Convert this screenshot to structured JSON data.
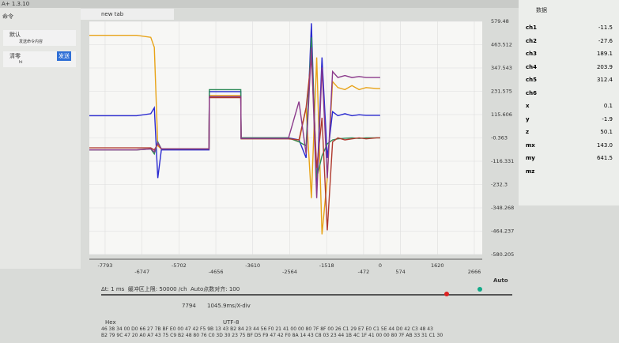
{
  "app": {
    "version": "A+ 1.3.10",
    "tab": "new tab"
  },
  "commands": {
    "title": "命令",
    "items": [
      {
        "name": "默认",
        "text": "发送命令内容"
      },
      {
        "name": "清零",
        "text": "hi"
      }
    ],
    "send": "发送"
  },
  "chart_data": {
    "type": "line",
    "x": [
      -8240,
      -6900,
      -6500,
      -6400,
      -6300,
      -6200,
      -4850,
      -4840,
      -3950,
      -3940,
      -2600,
      -2300,
      -2100,
      -1950,
      -1800,
      -1650,
      -1500,
      -1350,
      -1200,
      -1000,
      -800,
      -600,
      -400,
      -100,
      0
    ],
    "series": [
      {
        "color": "#e8a317",
        "values": [
          510,
          510,
          500,
          450,
          -40,
          -55,
          -55,
          210,
          210,
          0,
          0,
          -20,
          150,
          -300,
          400,
          -480,
          -200,
          280,
          250,
          240,
          260,
          240,
          250,
          245,
          245
        ]
      },
      {
        "color": "#2a2ad0",
        "values": [
          110,
          110,
          120,
          150,
          -200,
          -60,
          -60,
          230,
          230,
          0,
          0,
          -10,
          -100,
          570,
          -260,
          400,
          -100,
          130,
          110,
          120,
          110,
          115,
          112,
          112,
          112
        ]
      },
      {
        "color": "#2e8b57",
        "values": [
          -60,
          -60,
          -55,
          -80,
          -20,
          -55,
          -55,
          240,
          240,
          0,
          0,
          -20,
          -40,
          500,
          -200,
          -90,
          -30,
          -10,
          -5,
          -2,
          0,
          -3,
          0,
          0,
          0
        ]
      },
      {
        "color": "#b03a2e",
        "values": [
          -50,
          -50,
          -50,
          -60,
          -30,
          -55,
          -55,
          200,
          200,
          -5,
          -5,
          -10,
          150,
          400,
          -150,
          100,
          -460,
          -20,
          0,
          -10,
          -5,
          0,
          -5,
          0,
          0
        ]
      },
      {
        "color": "#8b3a8b",
        "values": [
          -60,
          -60,
          -55,
          -70,
          -25,
          -55,
          -55,
          205,
          205,
          -3,
          -3,
          180,
          -80,
          450,
          -300,
          350,
          -200,
          330,
          300,
          310,
          300,
          305,
          300,
          300,
          300
        ]
      }
    ],
    "xlim": [
      -8240,
      2890
    ],
    "ylim": [
      -580.205,
      579.48
    ],
    "xticks": [
      -7793,
      -6747,
      -5702,
      -4656,
      -3610,
      -2564,
      -1518,
      -472,
      0,
      574,
      1620,
      2666
    ],
    "yticks": [
      579.48,
      463.512,
      347.543,
      231.575,
      115.606,
      -0.363,
      -116.331,
      -232.3,
      -348.268,
      -464.237,
      -580.205
    ],
    "grid": true
  },
  "data_panel": {
    "title": "数据",
    "channels": [
      {
        "name": "ch1",
        "value": "-11.5"
      },
      {
        "name": "ch2",
        "value": "-27.6"
      },
      {
        "name": "ch3",
        "value": "189.1"
      },
      {
        "name": "ch4",
        "value": "203.9"
      },
      {
        "name": "ch5",
        "value": "312.4"
      },
      {
        "name": "ch6"
      },
      {
        "name": "x",
        "value": "0.1"
      },
      {
        "name": "y",
        "value": "-1.9"
      },
      {
        "name": "z",
        "value": "50.1"
      },
      {
        "name": "mx",
        "value": "143.0"
      },
      {
        "name": "my",
        "value": "641.5"
      },
      {
        "name": "mz"
      }
    ]
  },
  "controls": {
    "dt_label": "Δt:",
    "dt": "1",
    "dt_unit": "ms",
    "buffer_label": "缓冲区上限:",
    "buffer": "50000",
    "buffer_unit": "/ch",
    "auto_label": "Auto点数对齐:",
    "auto_points": "100",
    "auto": "Auto",
    "count": "7794",
    "xdiv": "1045.9ms/X-div"
  },
  "terminal": {
    "hex": "Hex",
    "encoding": "UTF-8",
    "lines": [
      "46 38 34 00 D0 66 27 7B BF E0 00 47 42 F5 9B 13 43 B2 84 23 44 56 F0 21 41 00 00 80 7F 8F 00 26 C1 29 E7 E0 C1 5E 44 D0 42 C3 48 43",
      "B2 79 9C 47 20 A0 A7 43 75 C9 B2 48 80 76 C0 3D 30 23 75 BF D5 F9 47 42 F0 8A 14 43 C8 03 23 44 1B 4C 1F 41 00 00 80 7F AB 33 31 C1 30"
    ]
  }
}
